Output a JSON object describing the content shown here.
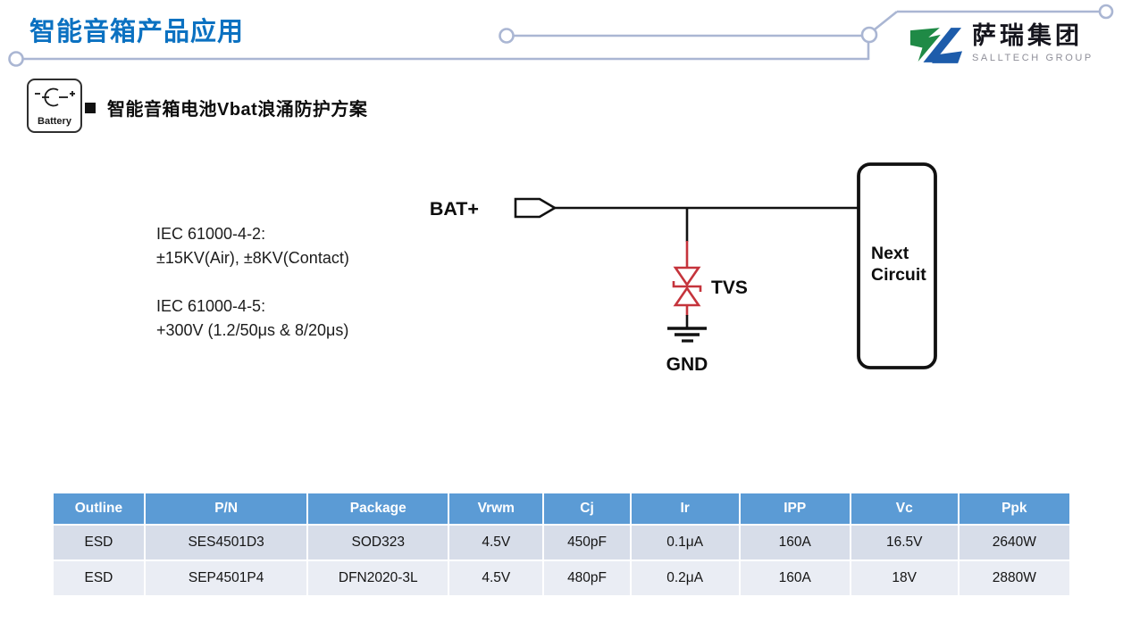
{
  "page": {
    "title": "智能音箱产品应用",
    "title_color": "#0b71c1",
    "deco_line_color": "#aab6d3"
  },
  "logo": {
    "company_cn": "萨瑞集团",
    "company_en": "SALLTECH GROUP",
    "green": "#1f8a46",
    "blue": "#1d5cab"
  },
  "section": {
    "battery_icon_label": "Battery",
    "heading": "智能音箱电池Vbat浪涌防护方案"
  },
  "specs": [
    {
      "title": "IEC 61000-4-2:",
      "value": "±15KV(Air), ±8KV(Contact)"
    },
    {
      "title": "IEC 61000-4-5:",
      "value": "+300V  (1.2/50μs & 8/20μs)"
    }
  ],
  "circuit": {
    "input_label": "BAT+",
    "device_label": "TVS",
    "ground_label": "GND",
    "next_block_line1": "Next",
    "next_block_line2": "Circuit",
    "wire_color": "#111111",
    "tvs_color": "#c5343c"
  },
  "table": {
    "header_bg": "#5b9bd5",
    "row_colors": [
      "#d7dde9",
      "#eaedf4"
    ],
    "columns": [
      "Outline",
      "P/N",
      "Package",
      "Vrwm",
      "Cj",
      "Ir",
      "IPP",
      "Vc",
      "Ppk"
    ],
    "rows": [
      [
        "ESD",
        "SES4501D3",
        "SOD323",
        "4.5V",
        "450pF",
        "0.1μA",
        "160A",
        "16.5V",
        "2640W"
      ],
      [
        "ESD",
        "SEP4501P4",
        "DFN2020-3L",
        "4.5V",
        "480pF",
        "0.2μA",
        "160A",
        "18V",
        "2880W"
      ]
    ]
  }
}
